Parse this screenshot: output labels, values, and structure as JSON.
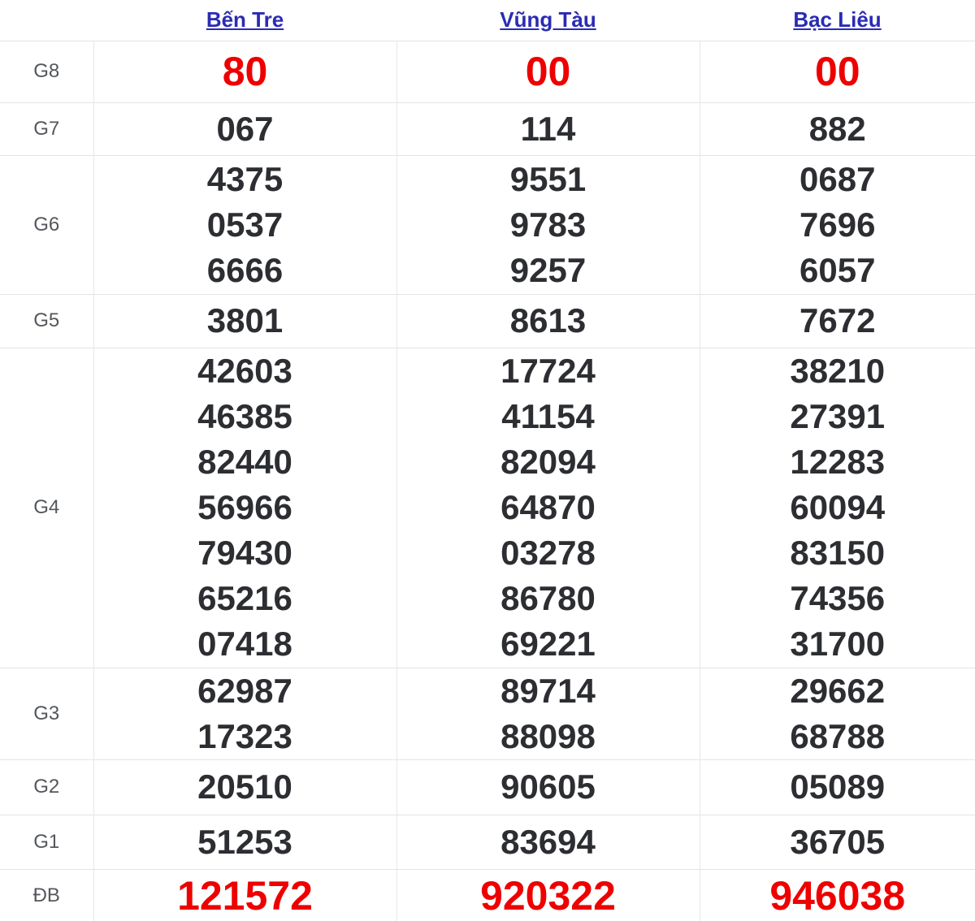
{
  "table": {
    "provinces": [
      {
        "name": "Bến Tre"
      },
      {
        "name": "Vũng Tàu"
      },
      {
        "name": "Bạc Liêu"
      }
    ],
    "rows": [
      {
        "label": "G8",
        "highlight": true,
        "cols": [
          [
            "80"
          ],
          [
            "00"
          ],
          [
            "00"
          ]
        ]
      },
      {
        "label": "G7",
        "highlight": false,
        "cols": [
          [
            "067"
          ],
          [
            "114"
          ],
          [
            "882"
          ]
        ]
      },
      {
        "label": "G6",
        "highlight": false,
        "cols": [
          [
            "4375",
            "0537",
            "6666"
          ],
          [
            "9551",
            "9783",
            "9257"
          ],
          [
            "0687",
            "7696",
            "6057"
          ]
        ]
      },
      {
        "label": "G5",
        "highlight": false,
        "cols": [
          [
            "3801"
          ],
          [
            "8613"
          ],
          [
            "7672"
          ]
        ]
      },
      {
        "label": "G4",
        "highlight": false,
        "cols": [
          [
            "42603",
            "46385",
            "82440",
            "56966",
            "79430",
            "65216",
            "07418"
          ],
          [
            "17724",
            "41154",
            "82094",
            "64870",
            "03278",
            "86780",
            "69221"
          ],
          [
            "38210",
            "27391",
            "12283",
            "60094",
            "83150",
            "74356",
            "31700"
          ]
        ]
      },
      {
        "label": "G3",
        "highlight": false,
        "cols": [
          [
            "62987",
            "17323"
          ],
          [
            "89714",
            "88098"
          ],
          [
            "29662",
            "68788"
          ]
        ]
      },
      {
        "label": "G2",
        "highlight": false,
        "cols": [
          [
            "20510"
          ],
          [
            "90605"
          ],
          [
            "05089"
          ]
        ]
      },
      {
        "label": "G1",
        "highlight": false,
        "cols": [
          [
            "51253"
          ],
          [
            "83694"
          ],
          [
            "36705"
          ]
        ]
      },
      {
        "label": "ĐB",
        "highlight": true,
        "cols": [
          [
            "121572"
          ],
          [
            "920322"
          ],
          [
            "946038"
          ]
        ]
      }
    ],
    "colors": {
      "province_link_blue": "#2b2bb3",
      "highlight_red": "#ee0000",
      "number_dark": "#2c2e32",
      "label_gray": "#54585c",
      "grid_border": "#e4e4e4"
    }
  }
}
